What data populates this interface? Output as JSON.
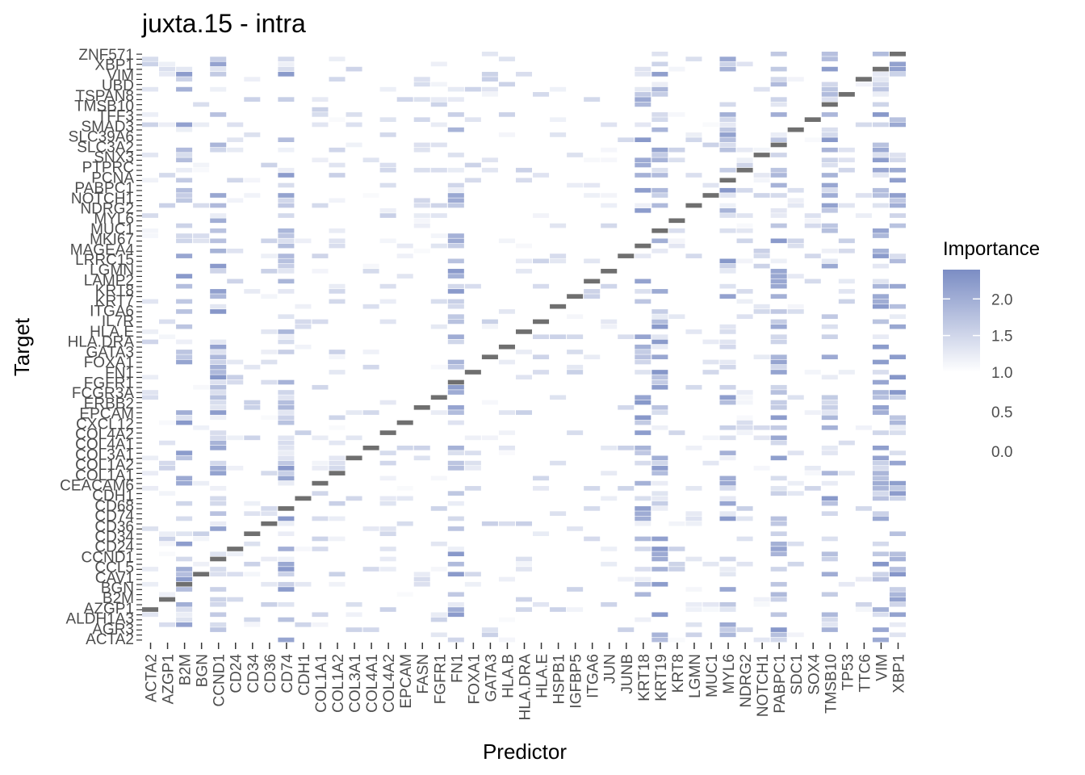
{
  "chart_data": {
    "type": "heatmap",
    "title": "juxta.15 - intra",
    "xlabel": "Predictor",
    "ylabel": "Target",
    "x_categories": [
      "ACTA2",
      "AZGP1",
      "B2M",
      "BGN",
      "CCND1",
      "CD24",
      "CD34",
      "CD36",
      "CD74",
      "CDH1",
      "COL1A1",
      "COL1A2",
      "COL3A1",
      "COL4A1",
      "COL4A2",
      "EPCAM",
      "FASN",
      "FGFR1",
      "FN1",
      "FOXA1",
      "GATA3",
      "HLA.B",
      "HLA.DRA",
      "HLA.E",
      "HSPB1",
      "IGFBP5",
      "ITGA6",
      "JUN",
      "JUNB",
      "KRT18",
      "KRT19",
      "KRT8",
      "LGMN",
      "MUC1",
      "MYL6",
      "NDRG2",
      "NOTCH1",
      "PABPC1",
      "SDC1",
      "SOX4",
      "TMSB10",
      "TP53",
      "TTC6",
      "VIM",
      "XBP1"
    ],
    "y_tick_labels_legible": [
      "ZNF571",
      "XBP1",
      "VIM",
      "UBD",
      "TSPAN8",
      "TMSB10",
      "TFF3",
      "SMAD3",
      "SLC39A6",
      "SLC3A2",
      "SNX3",
      "PTPRC",
      "PCNA",
      "PABPC1",
      "NOTCH1",
      "NDRG2",
      "MYL6",
      "MUC1",
      "MKI67",
      "MAGEA4",
      "LRRC15",
      "LGMN",
      "LAMP2",
      "KRT8",
      "KRT7",
      "ITGA6",
      "IL7R",
      "HLA.E",
      "HLA.DRA",
      "GATA3",
      "FOXA1",
      "FN1",
      "FGFR1",
      "FCGR3A",
      "ERBB2",
      "EPCAM",
      "CXCL12",
      "COL4A2",
      "COL4A1",
      "COL3A1",
      "COL1A2",
      "COL1A1",
      "CEACAM6",
      "CDH1",
      "CD68",
      "CD74",
      "CD36",
      "CD34",
      "CD24",
      "CCND1",
      "CCL5",
      "CAV1",
      "BGN",
      "B2M",
      "AZGP1",
      "ALDH1A3",
      "AGR3",
      "ACTA2"
    ],
    "value_range": [
      0,
      2.4
    ],
    "legend": {
      "title": "Importance",
      "position": "right",
      "labels": [
        "2.0",
        "1.5",
        "1.0",
        "0.5",
        "0.0"
      ],
      "values": [
        2.0,
        1.5,
        1.0,
        0.5,
        0.0
      ]
    },
    "colors": {
      "low": "#ffffff",
      "high": "#7b8dc4",
      "diagonal": "#6f6f6f"
    },
    "n_targets": 117,
    "grid": false
  }
}
